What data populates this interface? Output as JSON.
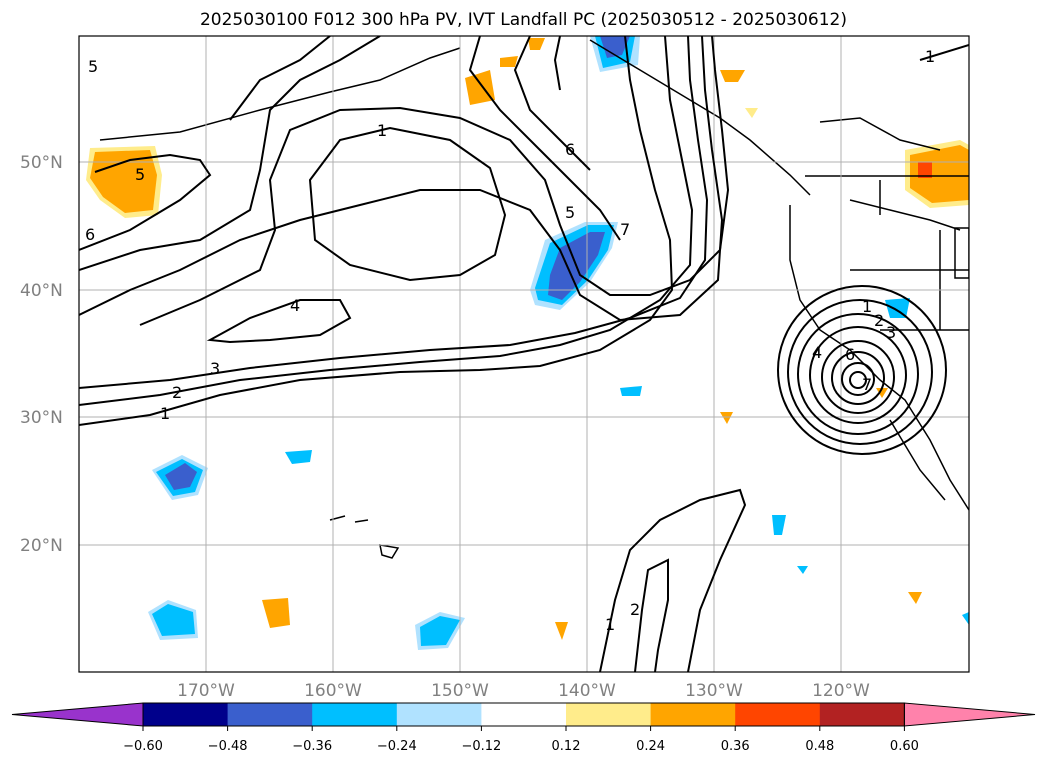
{
  "title": "2025030100 F012 300 hPa PV, IVT Landfall PC (2025030512 - 2025030612)",
  "lat_labels": [
    "50°N",
    "40°N",
    "30°N",
    "20°N"
  ],
  "lon_labels": [
    "170°W",
    "160°W",
    "150°W",
    "140°W",
    "130°W",
    "120°W"
  ],
  "colorbar": {
    "ticks": [
      "−0.60",
      "−0.48",
      "−0.36",
      "−0.24",
      "−0.12",
      "0.12",
      "0.24",
      "0.36",
      "0.48",
      "0.60"
    ],
    "colors": [
      "#9933cc",
      "#00008b",
      "#3a5fcd",
      "#00bfff",
      "#b0e2ff",
      "#ffffff",
      "#ffec8b",
      "#ffa500",
      "#ff4500",
      "#b22222",
      "#ff82ab"
    ]
  },
  "contour_labels": [
    "1",
    "2",
    "3",
    "4",
    "5",
    "6",
    "7"
  ],
  "colors": {
    "gridline": "#b0b0b0",
    "contour": "#000000",
    "coast": "#000000"
  }
}
